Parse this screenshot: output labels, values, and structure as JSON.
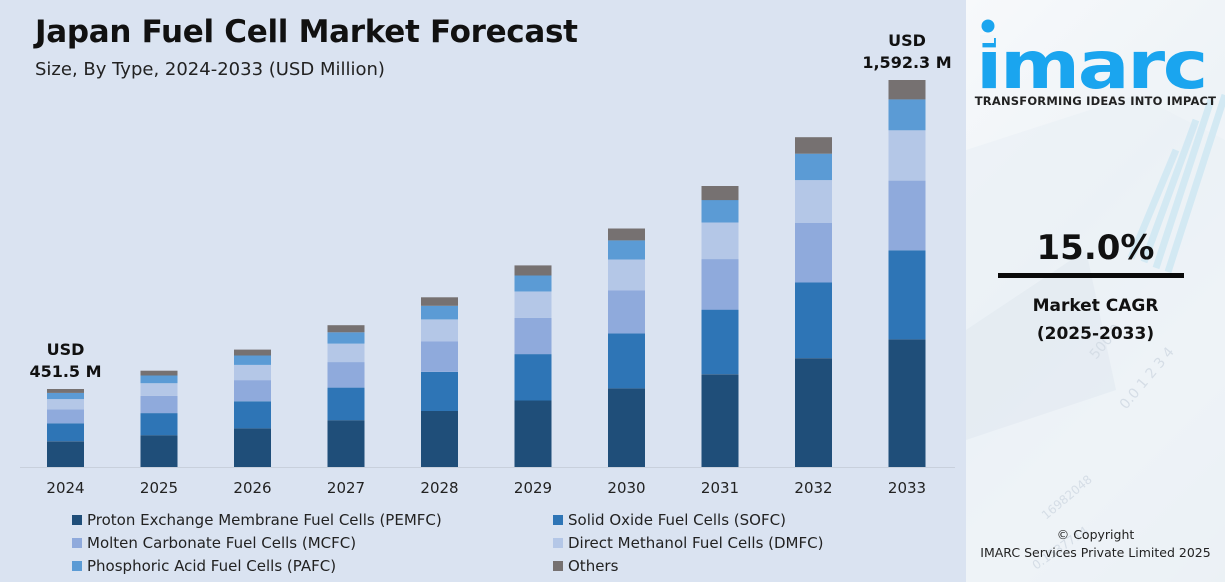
{
  "header": {
    "title": "Japan Fuel Cell Market Forecast",
    "subtitle": "Size, By Type, 2024-2033 (USD Million)"
  },
  "sidebar": {
    "brand": "imarc",
    "tagline": "TRANSFORMING IDEAS INTO IMPACT",
    "cagr_value": "15.0%",
    "cagr_label_1": "Market CAGR",
    "cagr_label_2": "(2025-2033)",
    "copyright_1": "© Copyright",
    "copyright_2": "IMARC Services Private Limited 2025",
    "brand_color": "#1aa5ef"
  },
  "chart_data": {
    "type": "bar",
    "stacked": true,
    "title": "Japan Fuel Cell Market Forecast",
    "subtitle": "Size, By Type, 2024-2033 (USD Million)",
    "xlabel": "",
    "ylabel": "USD Million",
    "categories": [
      "2024",
      "2025",
      "2026",
      "2027",
      "2028",
      "2029",
      "2030",
      "2031",
      "2032",
      "2033"
    ],
    "totals": [
      451.5,
      519,
      597,
      687,
      790,
      908,
      1044,
      1201,
      1381,
      1592.3
    ],
    "total_labels": [
      {
        "index": 0,
        "line1": "USD",
        "line2": "451.5 M"
      },
      {
        "index": 9,
        "line1": "USD",
        "line2": "1,592.3 M"
      }
    ],
    "series": [
      {
        "name": "Proton Exchange Membrane Fuel Cells (PEMFC)",
        "color": "#1f4e79",
        "shares": [
          0.33,
          0.33,
          0.33,
          0.33,
          0.33,
          0.33,
          0.33,
          0.33,
          0.33,
          0.33
        ]
      },
      {
        "name": "Solid Oxide Fuel Cells (SOFC)",
        "color": "#2e75b6",
        "shares": [
          0.23,
          0.23,
          0.23,
          0.23,
          0.23,
          0.23,
          0.23,
          0.23,
          0.23,
          0.23
        ]
      },
      {
        "name": "Molten Carbonate Fuel Cells (MCFC)",
        "color": "#8faadc",
        "shares": [
          0.18,
          0.18,
          0.18,
          0.18,
          0.18,
          0.18,
          0.18,
          0.18,
          0.18,
          0.18
        ]
      },
      {
        "name": "Direct Methanol Fuel Cells (DMFC)",
        "color": "#b4c7e7",
        "shares": [
          0.13,
          0.13,
          0.13,
          0.13,
          0.13,
          0.13,
          0.13,
          0.13,
          0.13,
          0.13
        ]
      },
      {
        "name": "Phosphoric Acid Fuel Cells (PAFC)",
        "color": "#5b9bd5",
        "shares": [
          0.08,
          0.08,
          0.08,
          0.08,
          0.08,
          0.08,
          0.08,
          0.08,
          0.08,
          0.08
        ]
      },
      {
        "name": "Others",
        "color": "#767171",
        "shares": [
          0.05,
          0.05,
          0.05,
          0.05,
          0.05,
          0.05,
          0.05,
          0.05,
          0.05,
          0.05
        ]
      }
    ],
    "legend_position": "bottom",
    "grid": false
  }
}
